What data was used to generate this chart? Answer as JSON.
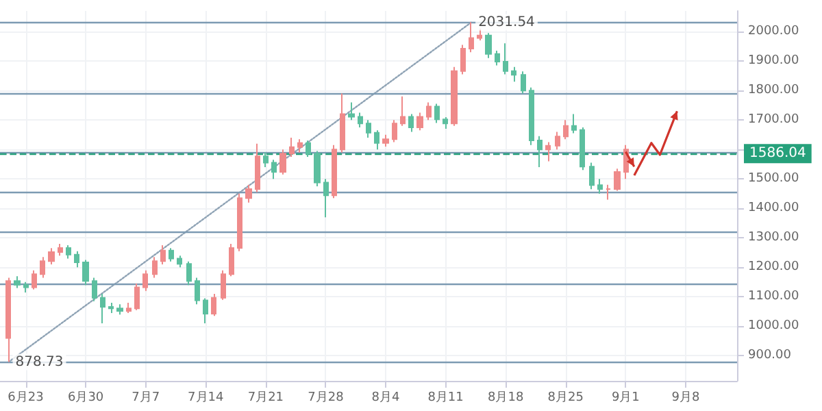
{
  "chart_data": {
    "type": "candlestick",
    "x": [
      "--06-21",
      "--06-22",
      "--06-23",
      "--06-24",
      "--06-25",
      "--06-26",
      "--06-27",
      "--06-28",
      "--06-29",
      "--06-30",
      "--07-01",
      "--07-02",
      "--07-03",
      "--07-04",
      "--07-05",
      "--07-06",
      "--07-07",
      "--07-08",
      "--07-09",
      "--07-10",
      "--07-11",
      "--07-12",
      "--07-13",
      "--07-14",
      "--07-15",
      "--07-16",
      "--07-17",
      "--07-18",
      "--07-19",
      "--07-20",
      "--07-21",
      "--07-22",
      "--07-23",
      "--07-24",
      "--07-25",
      "--07-26",
      "--07-27",
      "--07-28",
      "--07-29",
      "--07-30",
      "--07-31",
      "--08-01",
      "--08-02",
      "--08-03",
      "--08-04",
      "--08-05",
      "--08-06",
      "--08-07",
      "--08-08",
      "--08-09",
      "--08-10",
      "--08-11",
      "--08-12",
      "--08-13",
      "--08-14",
      "--08-15",
      "--08-16",
      "--08-17",
      "--08-18",
      "--08-19",
      "--08-20",
      "--08-21",
      "--08-22",
      "--08-23",
      "--08-24",
      "--08-25",
      "--08-26",
      "--08-27",
      "--08-28",
      "--08-29",
      "--08-30",
      "--08-31",
      "--09-01"
    ],
    "ohlc": [
      [
        960,
        1165,
        878.73,
        1154
      ],
      [
        1154,
        1170,
        1130,
        1141
      ],
      [
        1141,
        1150,
        1115,
        1132
      ],
      [
        1132,
        1190,
        1125,
        1177
      ],
      [
        1177,
        1235,
        1165,
        1221
      ],
      [
        1221,
        1265,
        1210,
        1252
      ],
      [
        1252,
        1280,
        1240,
        1266
      ],
      [
        1266,
        1275,
        1230,
        1243
      ],
      [
        1243,
        1255,
        1200,
        1217
      ],
      [
        1217,
        1225,
        1140,
        1154
      ],
      [
        1154,
        1165,
        1085,
        1097
      ],
      [
        1097,
        1110,
        1010,
        1066
      ],
      [
        1066,
        1080,
        1045,
        1061
      ],
      [
        1061,
        1075,
        1040,
        1052
      ],
      [
        1052,
        1080,
        1045,
        1061
      ],
      [
        1061,
        1145,
        1055,
        1132
      ],
      [
        1132,
        1190,
        1120,
        1177
      ],
      [
        1177,
        1235,
        1165,
        1221
      ],
      [
        1221,
        1275,
        1210,
        1257
      ],
      [
        1257,
        1265,
        1220,
        1230
      ],
      [
        1230,
        1240,
        1200,
        1212
      ],
      [
        1212,
        1220,
        1140,
        1154
      ],
      [
        1154,
        1165,
        1075,
        1088
      ],
      [
        1088,
        1095,
        1010,
        1043
      ],
      [
        1043,
        1110,
        1035,
        1097
      ],
      [
        1097,
        1190,
        1090,
        1177
      ],
      [
        1177,
        1280,
        1170,
        1266
      ],
      [
        1266,
        1450,
        1255,
        1435
      ],
      [
        1435,
        1480,
        1420,
        1466
      ],
      [
        1466,
        1620,
        1455,
        1577
      ],
      [
        1577,
        1590,
        1540,
        1555
      ],
      [
        1555,
        1565,
        1500,
        1524
      ],
      [
        1524,
        1600,
        1515,
        1586
      ],
      [
        1586,
        1640,
        1575,
        1608
      ],
      [
        1608,
        1635,
        1590,
        1622
      ],
      [
        1622,
        1630,
        1575,
        1586
      ],
      [
        1586,
        1595,
        1475,
        1488
      ],
      [
        1488,
        1500,
        1370,
        1444
      ],
      [
        1444,
        1615,
        1435,
        1600
      ],
      [
        1600,
        1790,
        1590,
        1720
      ],
      [
        1720,
        1760,
        1700,
        1711
      ],
      [
        1711,
        1725,
        1675,
        1688
      ],
      [
        1688,
        1700,
        1640,
        1657
      ],
      [
        1657,
        1665,
        1600,
        1622
      ],
      [
        1622,
        1650,
        1610,
        1635
      ],
      [
        1635,
        1700,
        1625,
        1688
      ],
      [
        1688,
        1780,
        1680,
        1711
      ],
      [
        1711,
        1720,
        1660,
        1675
      ],
      [
        1675,
        1725,
        1665,
        1711
      ],
      [
        1711,
        1760,
        1700,
        1746
      ],
      [
        1746,
        1755,
        1690,
        1702
      ],
      [
        1702,
        1710,
        1670,
        1688
      ],
      [
        1688,
        1880,
        1680,
        1866
      ],
      [
        1866,
        1955,
        1855,
        1942
      ],
      [
        1942,
        2031.54,
        1930,
        1978
      ],
      [
        1978,
        2010,
        1970,
        1987
      ],
      [
        1987,
        1995,
        1910,
        1924
      ],
      [
        1924,
        1935,
        1885,
        1898
      ],
      [
        1898,
        1960,
        1855,
        1866
      ],
      [
        1866,
        1880,
        1830,
        1853
      ],
      [
        1853,
        1865,
        1790,
        1800
      ],
      [
        1800,
        1810,
        1615,
        1631
      ],
      [
        1631,
        1645,
        1540,
        1600
      ],
      [
        1600,
        1625,
        1560,
        1613
      ],
      [
        1613,
        1660,
        1600,
        1644
      ],
      [
        1644,
        1700,
        1635,
        1680
      ],
      [
        1680,
        1720,
        1655,
        1666
      ],
      [
        1666,
        1675,
        1530,
        1542
      ],
      [
        1542,
        1555,
        1465,
        1479
      ],
      [
        1479,
        1500,
        1450,
        1466
      ],
      [
        1466,
        1480,
        1430,
        1466
      ],
      [
        1466,
        1535,
        1460,
        1524
      ],
      [
        1524,
        1615,
        1500,
        1600
      ]
    ],
    "series": [
      {
        "type": "line",
        "x": [
          "--06-21",
          "--08-14"
        ],
        "values": [
          878.73,
          2031.54
        ],
        "color": "#8fa3b5",
        "line_style": "dotted",
        "marker": "none"
      }
    ],
    "xlim": [
      "--06-20",
      "--09-14"
    ],
    "xticks": [
      {
        "value": "--06-23",
        "label": "6月23"
      },
      {
        "value": "--06-30",
        "label": "6月30"
      },
      {
        "value": "--07-07",
        "label": "7月7"
      },
      {
        "value": "--07-14",
        "label": "7月14"
      },
      {
        "value": "--07-21",
        "label": "7月21"
      },
      {
        "value": "--07-28",
        "label": "7月28"
      },
      {
        "value": "--08-04",
        "label": "8月4"
      },
      {
        "value": "--08-11",
        "label": "8月11"
      },
      {
        "value": "--08-18",
        "label": "8月18"
      },
      {
        "value": "--08-25",
        "label": "8月25"
      },
      {
        "value": "--09-01",
        "label": "9月1"
      },
      {
        "value": "--09-08",
        "label": "9月8"
      }
    ],
    "ylim": [
      815,
      2070
    ],
    "yticks": [
      {
        "value": 900,
        "label": "900.00"
      },
      {
        "value": 1000,
        "label": "1000.00"
      },
      {
        "value": 1100,
        "label": "1100.00"
      },
      {
        "value": 1200,
        "label": "1200.00"
      },
      {
        "value": 1300,
        "label": "1300.00"
      },
      {
        "value": 1400,
        "label": "1400.00"
      },
      {
        "value": 1500,
        "label": "1500.00"
      },
      {
        "value": 1600,
        "label": null
      },
      {
        "value": 1700,
        "label": "1700.00"
      },
      {
        "value": 1800,
        "label": "1800.00"
      },
      {
        "value": 1900,
        "label": "1900.00"
      },
      {
        "value": 2000,
        "label": "2000.00"
      }
    ],
    "ref_lines": [
      {
        "axis": "y",
        "value": 2031.54,
        "color": "#7d9bb3"
      },
      {
        "axis": "y",
        "value": 1790,
        "color": "#7d9bb3"
      },
      {
        "axis": "y",
        "value": 1590,
        "color": "#7d9bb3"
      },
      {
        "axis": "y",
        "value": 1455,
        "color": "#7d9bb3"
      },
      {
        "axis": "y",
        "value": 1320,
        "color": "#7d9bb3"
      },
      {
        "axis": "y",
        "value": 1145,
        "color": "#7d9bb3"
      },
      {
        "axis": "y",
        "value": 878.73,
        "color": "#7d9bb3"
      },
      {
        "axis": "y",
        "value": 1586.04,
        "label": "1586.04",
        "color": "#26a17b",
        "line_style": "dashed"
      }
    ],
    "annotations": [
      {
        "text": "2031.54",
        "x": "--08-14",
        "y": 2031.54
      },
      {
        "text": "878.73",
        "x": "--06-21",
        "y": 878.73
      }
    ],
    "grid": true
  }
}
